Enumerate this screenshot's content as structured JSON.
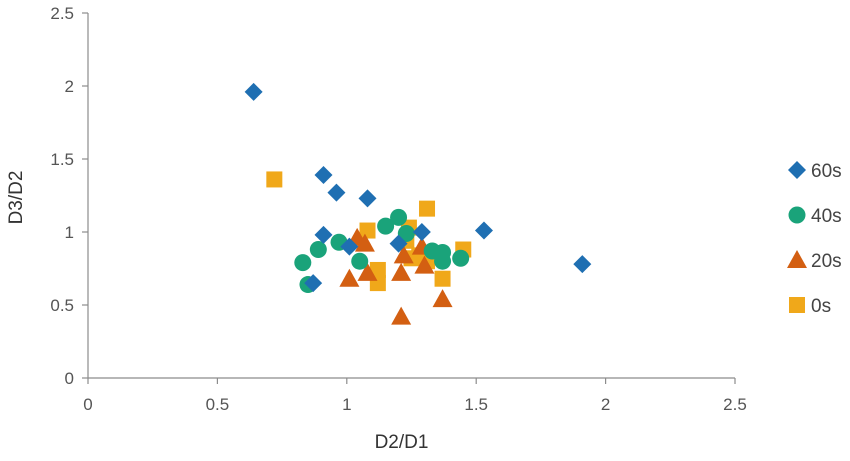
{
  "chart_data": {
    "type": "scatter",
    "title": "",
    "xlabel": "D2/D1",
    "ylabel": "D3/D2",
    "xlim": [
      0,
      2.5
    ],
    "ylim": [
      0,
      2.5
    ],
    "xticks": [
      "0",
      "0.5",
      "1",
      "1.5",
      "2",
      "2.5"
    ],
    "yticks": [
      "0",
      "0.5",
      "1",
      "1.5",
      "2",
      "2.5"
    ],
    "grid": false,
    "legend_position": "right",
    "series": [
      {
        "name": "60s",
        "marker": "diamond",
        "color": "#1f6fb2",
        "points": [
          [
            0.64,
            1.96
          ],
          [
            0.91,
            1.39
          ],
          [
            0.96,
            1.27
          ],
          [
            1.08,
            1.23
          ],
          [
            0.91,
            0.98
          ],
          [
            1.29,
            1.0
          ],
          [
            1.53,
            1.01
          ],
          [
            1.91,
            0.78
          ],
          [
            0.87,
            0.65
          ],
          [
            1.01,
            0.9
          ],
          [
            1.2,
            0.92
          ]
        ]
      },
      {
        "name": "40s",
        "marker": "circle",
        "color": "#1aa37a",
        "points": [
          [
            0.83,
            0.79
          ],
          [
            0.85,
            0.64
          ],
          [
            0.89,
            0.88
          ],
          [
            0.97,
            0.93
          ],
          [
            1.05,
            0.8
          ],
          [
            1.15,
            1.04
          ],
          [
            1.2,
            1.1
          ],
          [
            1.23,
            0.99
          ],
          [
            1.33,
            0.87
          ],
          [
            1.37,
            0.86
          ],
          [
            1.37,
            0.8
          ],
          [
            1.44,
            0.82
          ]
        ]
      },
      {
        "name": "20s",
        "marker": "triangle",
        "color": "#d35f12",
        "points": [
          [
            1.01,
            0.68
          ],
          [
            1.04,
            0.96
          ],
          [
            1.07,
            0.92
          ],
          [
            1.08,
            0.72
          ],
          [
            1.21,
            0.42
          ],
          [
            1.21,
            0.72
          ],
          [
            1.22,
            0.84
          ],
          [
            1.29,
            0.9
          ],
          [
            1.3,
            0.77
          ],
          [
            1.37,
            0.54
          ]
        ]
      },
      {
        "name": "0s",
        "marker": "square",
        "color": "#f0a81a",
        "points": [
          [
            0.72,
            1.36
          ],
          [
            1.08,
            1.01
          ],
          [
            1.12,
            0.74
          ],
          [
            1.12,
            0.65
          ],
          [
            1.23,
            0.94
          ],
          [
            1.24,
            1.03
          ],
          [
            1.25,
            0.82
          ],
          [
            1.28,
            0.84
          ],
          [
            1.31,
            0.8
          ],
          [
            1.31,
            1.16
          ],
          [
            1.37,
            0.68
          ],
          [
            1.45,
            0.88
          ]
        ]
      }
    ]
  }
}
